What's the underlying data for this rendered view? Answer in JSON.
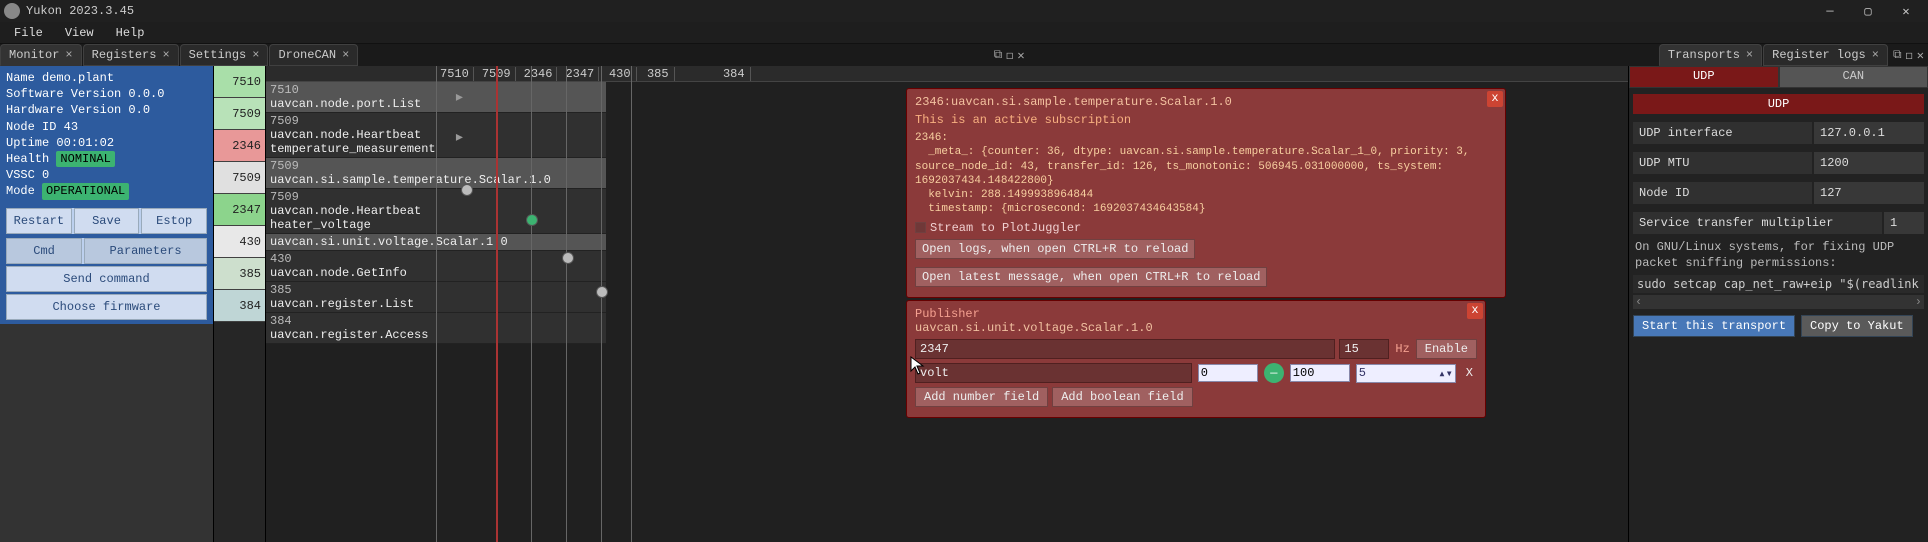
{
  "window": {
    "title": "Yukon 2023.3.45"
  },
  "menu": {
    "file": "File",
    "view": "View",
    "help": "Help"
  },
  "tabs": {
    "left": [
      {
        "label": "Monitor",
        "active": true
      },
      {
        "label": "Registers",
        "active": false
      },
      {
        "label": "Settings",
        "active": false
      },
      {
        "label": "DroneCAN",
        "active": false
      }
    ],
    "right": [
      {
        "label": "Transports",
        "active": true
      },
      {
        "label": "Register logs",
        "active": false
      }
    ]
  },
  "node": {
    "name_label": "Name",
    "name": "demo.plant",
    "sw_label": "Software Version",
    "sw": "0.0.0",
    "hw_label": "Hardware Version",
    "hw": "0.0",
    "id_label": "Node ID",
    "id": "43",
    "uptime_label": "Uptime",
    "uptime": "00:01:02",
    "health_label": "Health",
    "health": "NOMINAL",
    "vssc_label": "VSSC",
    "vssc": "0",
    "mode_label": "Mode",
    "mode": "OPERATIONAL",
    "buttons": {
      "restart": "Restart",
      "save": "Save",
      "estop": "Estop",
      "cmd": "Cmd",
      "params": "Parameters",
      "send": "Send command",
      "firmware": "Choose firmware"
    }
  },
  "ports": [
    {
      "id": "7510",
      "cls": "pc-7510"
    },
    {
      "id": "7509",
      "cls": "pc-7509a"
    },
    {
      "id": "2346",
      "cls": "pc-2346"
    },
    {
      "id": "7509",
      "cls": "pc-7509b"
    },
    {
      "id": "2347",
      "cls": "pc-2347"
    },
    {
      "id": "430",
      "cls": "pc-430"
    },
    {
      "id": "385",
      "cls": "pc-385"
    },
    {
      "id": "384",
      "cls": "pc-384"
    }
  ],
  "graph_header": [
    "7510",
    "7509",
    "2346",
    "2347",
    "430",
    "385",
    "",
    "384"
  ],
  "topics": [
    {
      "id": "7510",
      "name": "uavcan.node.port.List",
      "hl": true
    },
    {
      "id": "7509",
      "name": "uavcan.node.Heartbeat",
      "hl": false,
      "sub": "temperature_measurement"
    },
    {
      "id": "7509",
      "name": "uavcan.si.sample.temperature.Scalar.1.0",
      "hl": true,
      "idline": false
    },
    {
      "id": "7509",
      "name": "uavcan.node.Heartbeat",
      "hl": false,
      "sub": "heater_voltage"
    },
    {
      "id": "",
      "name": "uavcan.si.unit.voltage.Scalar.1.0",
      "hl": true
    },
    {
      "id": "430",
      "name": "uavcan.node.GetInfo",
      "hl": false
    },
    {
      "id": "385",
      "name": "uavcan.register.List",
      "hl": false
    },
    {
      "id": "384",
      "name": "uavcan.register.Access",
      "hl": false
    }
  ],
  "subscription": {
    "title": "2346:uavcan.si.sample.temperature.Scalar.1.0",
    "status": "This is an active subscription",
    "body": "2346:\n  _meta_: {counter: 36, dtype: uavcan.si.sample.temperature.Scalar_1_0, priority: 3,\nsource_node_id: 43, transfer_id: 126, ts_monotonic: 506945.031000000, ts_system:\n1692037434.148422800}\n  kelvin: 288.1499938964844\n  timestamp: {microsecond: 1692037434643584}",
    "stream": "Stream to PlotJuggler",
    "open_logs": "Open logs, when open CTRL+R to reload",
    "open_latest": "Open latest message, when open CTRL+R to reload"
  },
  "publisher": {
    "title": "Publisher",
    "type": "uavcan.si.unit.voltage.Scalar.1.0",
    "port": "2347",
    "rate": "15",
    "hz": "Hz",
    "enable": "Enable",
    "field_name": "volt",
    "min": "0",
    "max": "100",
    "value": "5",
    "add_num": "Add number field",
    "add_bool": "Add boolean field"
  },
  "transport": {
    "udp_tab": "UDP",
    "can_tab": "CAN",
    "udp_label": "UDP",
    "iface_label": "UDP interface",
    "iface": "127.0.0.1",
    "mtu_label": "UDP MTU",
    "mtu": "1200",
    "node_label": "Node ID",
    "node": "127",
    "mult_label": "Service transfer multiplier",
    "mult": "1",
    "note": "On GNU/Linux systems, for fixing UDP packet sniffing permissions:",
    "cmd": "sudo setcap cap_net_raw+eip \"$(readlink -f PATH",
    "start": "Start this transport",
    "copy": "Copy to Yakut"
  }
}
